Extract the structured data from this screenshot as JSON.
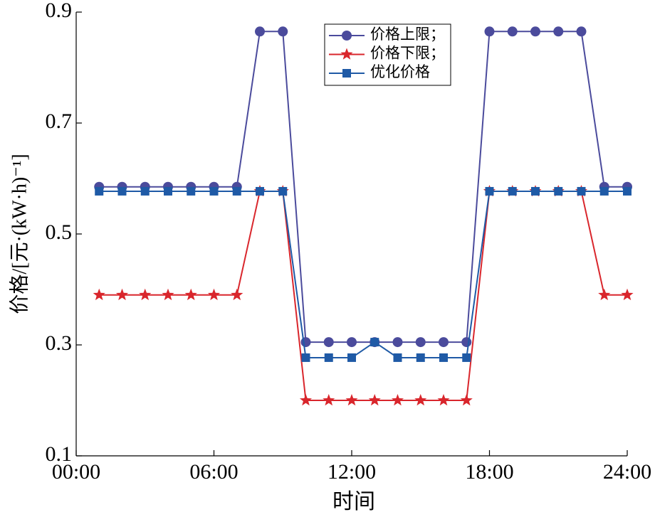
{
  "chart_data": {
    "type": "line",
    "x_label": "时间",
    "y_label": "价格/[元·(kW·h)⁻¹]",
    "x": [
      1,
      2,
      3,
      4,
      5,
      6,
      7,
      8,
      9,
      10,
      11,
      12,
      13,
      14,
      15,
      16,
      17,
      18,
      19,
      20,
      21,
      22,
      23,
      24
    ],
    "xlim": [
      0,
      24
    ],
    "xticks": [
      {
        "value": 0,
        "label": "00:00"
      },
      {
        "value": 6,
        "label": "06:00"
      },
      {
        "value": 12,
        "label": "12:00"
      },
      {
        "value": 18,
        "label": "18:00"
      },
      {
        "value": 24,
        "label": "24:00"
      }
    ],
    "ylim": [
      0.1,
      0.9
    ],
    "yticks": [
      0.1,
      0.3,
      0.5,
      0.7,
      0.9
    ],
    "series": [
      {
        "name": "价格上限；",
        "color": "#4b4b9c",
        "marker": "circle",
        "values": [
          0.585,
          0.585,
          0.585,
          0.585,
          0.585,
          0.585,
          0.585,
          0.865,
          0.865,
          0.305,
          0.305,
          0.305,
          0.305,
          0.305,
          0.305,
          0.305,
          0.305,
          0.865,
          0.865,
          0.865,
          0.865,
          0.865,
          0.585,
          0.585
        ]
      },
      {
        "name": "价格下限；",
        "color": "#d9262c",
        "marker": "star",
        "values": [
          0.39,
          0.39,
          0.39,
          0.39,
          0.39,
          0.39,
          0.39,
          0.577,
          0.577,
          0.2,
          0.2,
          0.2,
          0.2,
          0.2,
          0.2,
          0.2,
          0.2,
          0.577,
          0.577,
          0.577,
          0.577,
          0.577,
          0.39,
          0.39
        ]
      },
      {
        "name": "优化价格",
        "color": "#1f5aa6",
        "marker": "square",
        "values": [
          0.577,
          0.577,
          0.577,
          0.577,
          0.577,
          0.577,
          0.577,
          0.577,
          0.577,
          0.277,
          0.277,
          0.277,
          0.305,
          0.277,
          0.277,
          0.277,
          0.277,
          0.577,
          0.577,
          0.577,
          0.577,
          0.577,
          0.577,
          0.577
        ]
      }
    ]
  }
}
